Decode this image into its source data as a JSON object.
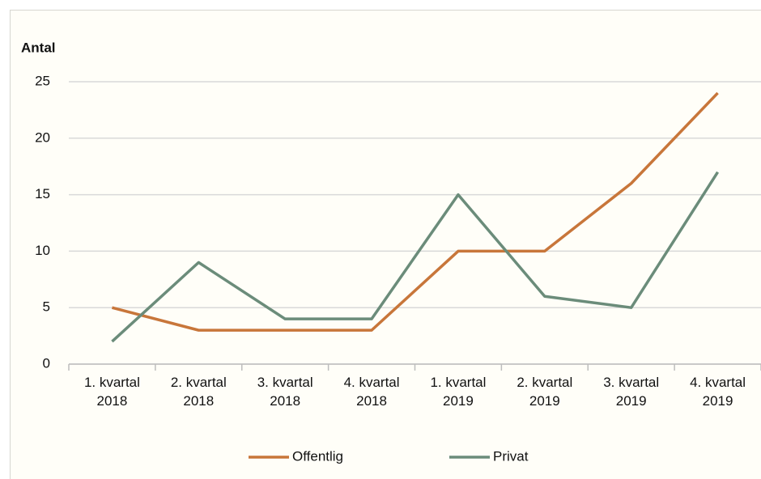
{
  "chart_data": {
    "type": "line",
    "y_label": "Antal",
    "categories": [
      "1. kvartal\n2018",
      "2. kvartal\n2018",
      "3. kvartal\n2018",
      "4. kvartal\n2018",
      "1. kvartal\n2019",
      "2. kvartal\n2019",
      "3. kvartal\n2019",
      "4. kvartal\n2019"
    ],
    "series": [
      {
        "name": "Offentlig",
        "color": "#c8763a",
        "values": [
          5,
          3,
          3,
          3,
          10,
          10,
          16,
          24
        ]
      },
      {
        "name": "Privat",
        "color": "#6b8c7a",
        "values": [
          2,
          9,
          4,
          4,
          15,
          6,
          5,
          17
        ]
      }
    ],
    "ylim": [
      0,
      25
    ],
    "yticks": [
      0,
      5,
      10,
      15,
      20,
      25
    ],
    "grid": true,
    "legend": "bottom"
  }
}
